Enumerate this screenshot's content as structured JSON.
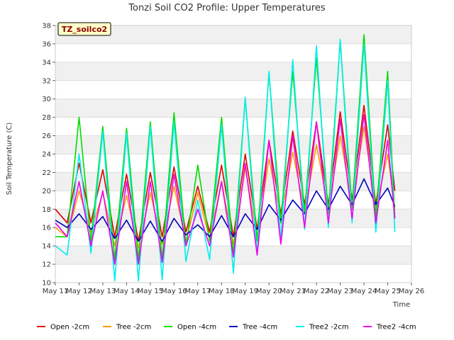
{
  "chart_data": {
    "type": "line",
    "title": "Tonzi Soil CO2 Profile: Upper Temperatures",
    "xlabel": "Time",
    "ylabel": "Soil Temperature (C)",
    "badge": "TZ_soilco2",
    "ylim": [
      10,
      38
    ],
    "yticks": [
      10,
      12,
      14,
      16,
      18,
      20,
      22,
      24,
      26,
      28,
      30,
      32,
      34,
      36,
      38
    ],
    "xlim": [
      11,
      26
    ],
    "xticks": [
      "May 11",
      "May 12",
      "May 13",
      "May 14",
      "May 15",
      "May 16",
      "May 17",
      "May 18",
      "May 19",
      "May 20",
      "May 21",
      "May 22",
      "May 23",
      "May 24",
      "May 25",
      "May 26"
    ],
    "grid": true,
    "alternating_bands": true,
    "legend_position": "bottom",
    "x_days": [
      11.0,
      11.5,
      12.0,
      12.5,
      13.0,
      13.5,
      14.0,
      14.5,
      15.0,
      15.5,
      16.0,
      16.5,
      17.0,
      17.5,
      18.0,
      18.5,
      19.0,
      19.5,
      20.0,
      20.5,
      21.0,
      21.5,
      22.0,
      22.5,
      23.0,
      23.5,
      24.0,
      24.5,
      25.0,
      25.3
    ],
    "series": [
      {
        "name": "Open -2cm",
        "color": "#e00000",
        "values": [
          18.0,
          16.5,
          23.0,
          16.5,
          22.3,
          15.0,
          21.8,
          14.5,
          22.0,
          15.0,
          22.6,
          15.5,
          20.5,
          15.5,
          22.8,
          15.0,
          24.0,
          15.8,
          25.5,
          17.5,
          26.5,
          18.5,
          27.5,
          18.5,
          28.6,
          19.0,
          29.3,
          18.5,
          27.2,
          20.0
        ]
      },
      {
        "name": "Tree -2cm",
        "color": "#ff9900",
        "values": [
          16.0,
          15.0,
          20.0,
          15.5,
          19.8,
          14.0,
          19.5,
          13.8,
          19.8,
          14.2,
          20.5,
          14.5,
          19.8,
          14.8,
          21.0,
          14.2,
          22.5,
          15.0,
          23.5,
          17.0,
          24.2,
          17.8,
          25.0,
          18.0,
          26.0,
          18.5,
          27.0,
          18.0,
          24.0,
          18.0
        ]
      },
      {
        "name": "Open -4cm",
        "color": "#00dd00",
        "values": [
          15.0,
          15.0,
          28.0,
          14.5,
          27.0,
          12.5,
          26.8,
          12.5,
          27.5,
          12.5,
          28.5,
          14.0,
          22.8,
          14.5,
          28.0,
          13.0,
          30.0,
          14.5,
          32.8,
          16.5,
          33.0,
          17.5,
          34.5,
          17.5,
          36.3,
          18.0,
          37.0,
          17.0,
          33.0,
          17.0
        ]
      },
      {
        "name": "Tree -4cm",
        "color": "#0000bb",
        "values": [
          16.8,
          16.0,
          17.5,
          15.8,
          17.2,
          14.8,
          16.8,
          14.5,
          16.7,
          14.5,
          17.0,
          15.2,
          16.3,
          15.0,
          17.3,
          15.0,
          17.5,
          15.8,
          18.5,
          16.8,
          19.0,
          17.5,
          20.0,
          18.0,
          20.5,
          18.5,
          21.3,
          18.5,
          20.3,
          18.3
        ]
      },
      {
        "name": "Tree2 -2cm",
        "color": "#00eeee",
        "values": [
          14.0,
          13.0,
          24.0,
          13.2,
          26.5,
          10.2,
          26.3,
          10.2,
          27.0,
          10.3,
          27.5,
          12.3,
          19.0,
          12.5,
          27.2,
          11.0,
          30.2,
          13.0,
          33.0,
          14.5,
          34.3,
          15.8,
          35.8,
          16.0,
          36.5,
          16.5,
          36.0,
          15.5,
          32.0,
          15.5
        ]
      },
      {
        "name": "Tree2 -4cm",
        "color": "#ee00ee",
        "values": [
          16.5,
          15.0,
          21.0,
          14.0,
          20.0,
          12.0,
          21.0,
          12.0,
          21.0,
          12.2,
          21.8,
          14.0,
          18.0,
          14.0,
          21.0,
          12.8,
          23.0,
          13.0,
          25.5,
          14.2,
          26.0,
          16.0,
          27.5,
          16.5,
          27.8,
          17.0,
          28.3,
          16.5,
          25.5,
          17.0
        ]
      }
    ]
  }
}
